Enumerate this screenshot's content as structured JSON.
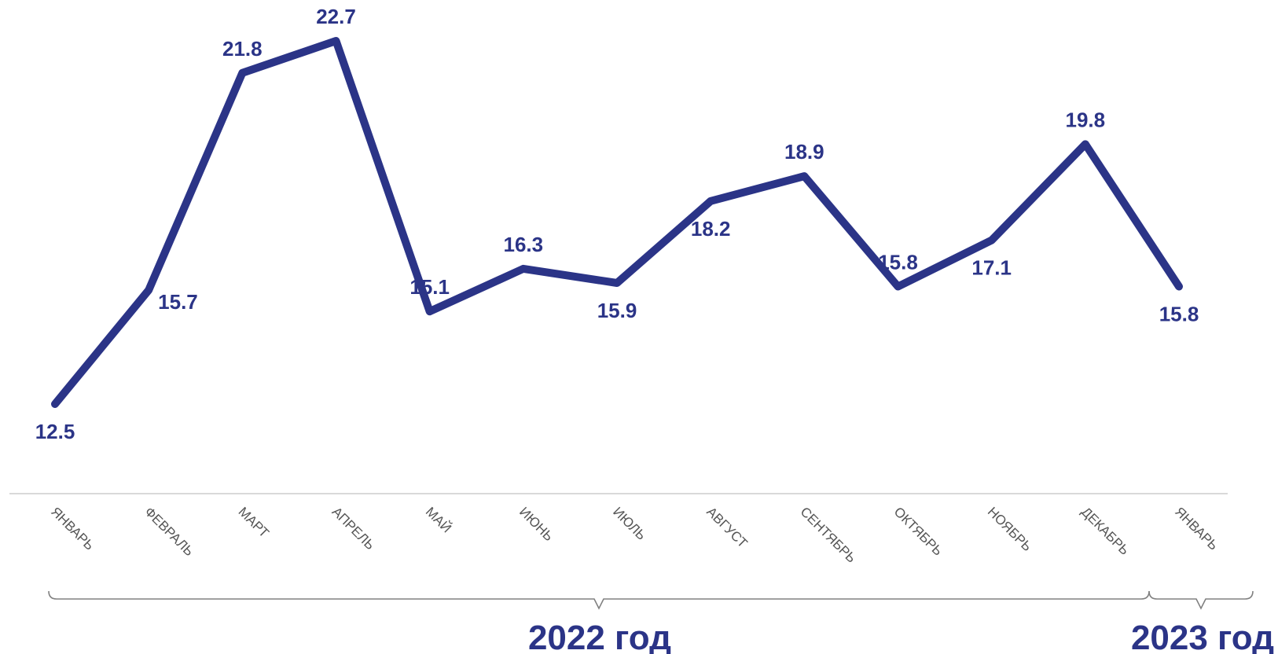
{
  "chart_data": {
    "type": "line",
    "categories": [
      "ЯНВАРЬ",
      "ФЕВРАЛЬ",
      "МАРТ",
      "АПРЕЛЬ",
      "МАЙ",
      "ИЮНЬ",
      "ИЮЛЬ",
      "АВГУСТ",
      "СЕНТЯБРЬ",
      "ОКТЯБРЬ",
      "НОЯБРЬ",
      "ДЕКАБРЬ",
      "ЯНВАРЬ"
    ],
    "series": [
      {
        "values": [
          12.5,
          15.7,
          21.8,
          22.7,
          15.1,
          16.3,
          15.9,
          18.2,
          18.9,
          15.8,
          17.1,
          19.8,
          15.8
        ]
      }
    ],
    "value_labels": [
      "12.5",
      "15.7",
      "21.8",
      "22.7",
      "15.1",
      "16.3",
      "15.9",
      "18.2",
      "18.9",
      "15.8",
      "17.1",
      "19.8",
      "15.8"
    ],
    "label_positions": [
      "below",
      "right",
      "above",
      "above",
      "above",
      "above",
      "below",
      "below",
      "above",
      "above",
      "below",
      "above",
      "below"
    ],
    "ylim": [
      12.5,
      22.7
    ],
    "grid": false,
    "legend": "none",
    "groups": [
      {
        "label": "2022 год",
        "from": 0,
        "to": 11
      },
      {
        "label": "2023 год",
        "from": 12,
        "to": 12
      }
    ],
    "colors": {
      "line": "#2b3487",
      "labels": "#2b3487",
      "axis": "#d9d9d9",
      "ticks": "#555555",
      "bracket": "#808080"
    }
  }
}
